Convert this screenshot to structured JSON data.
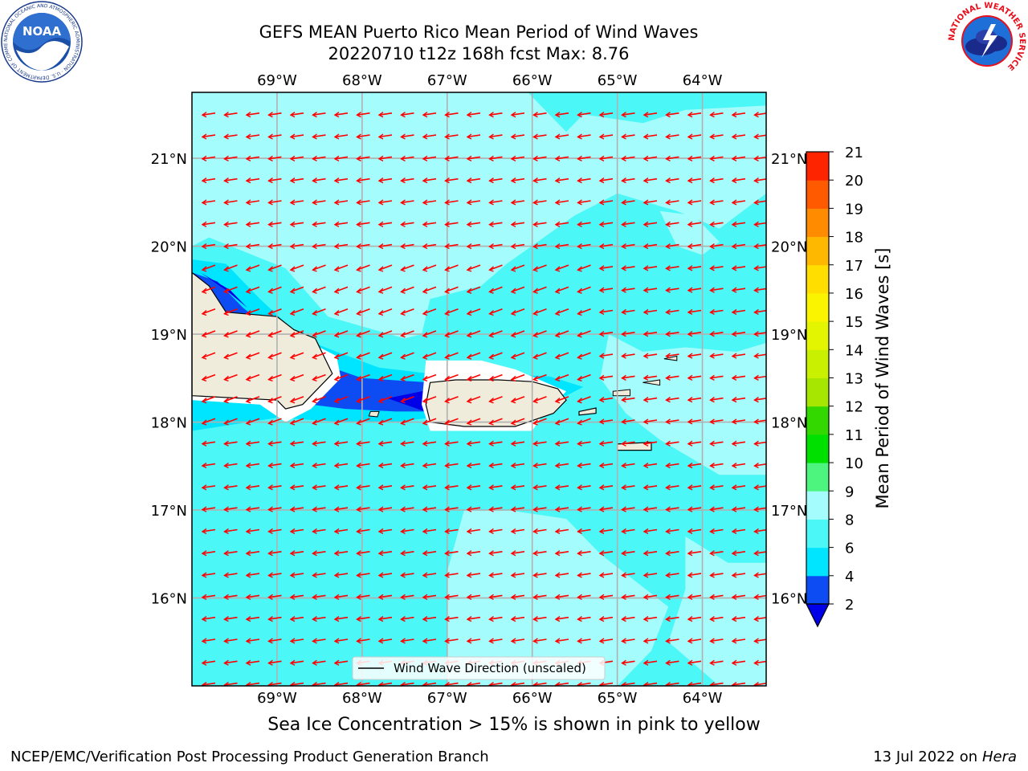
{
  "title": {
    "line1": "GEFS MEAN Puerto Rico Mean Period of Wind Waves",
    "line2": "20220710 t12z 168h fcst   Max: 8.76"
  },
  "map": {
    "lon_range": [
      -70.0,
      -63.25
    ],
    "lat_range": [
      15.0,
      21.75
    ],
    "lon_ticks": [
      "69°W",
      "68°W",
      "67°W",
      "66°W",
      "65°W",
      "64°W"
    ],
    "lat_ticks": [
      "21°N",
      "20°N",
      "19°N",
      "18°N",
      "17°N",
      "16°N"
    ],
    "legend_label": "Wind Wave Direction (unscaled)",
    "arrow_color": "#ff0000",
    "land_color": "#efecdc"
  },
  "colorbar": {
    "label": "Mean Period of Wind Waves [s]",
    "ticks": [
      "2",
      "4",
      "6",
      "8",
      "9",
      "10",
      "11",
      "12",
      "13",
      "14",
      "15",
      "16",
      "17",
      "18",
      "19",
      "20",
      "21"
    ],
    "colors": [
      "#0c4cf2",
      "#00e5ff",
      "#4cf7f7",
      "#a5fcfc",
      "#4df57f",
      "#00e000",
      "#33d800",
      "#a7e600",
      "#c9f000",
      "#e3f500",
      "#fbf400",
      "#ffde00",
      "#ffb800",
      "#ff8c00",
      "#ff5a00",
      "#ff2400"
    ],
    "under_color": "#0000e8"
  },
  "caption": "Sea Ice Concentration > 15% is shown in pink to yellow",
  "footer": {
    "left": "NCEP/EMC/Verification Post Processing Product Generation Branch",
    "right_prefix": "13 Jul 2022 on ",
    "right_host": "Hera"
  },
  "logos": {
    "noaa_text": "NOAA",
    "noaa_ring": "NATIONAL OCEANIC AND ATMOSPHERIC ADMINISTRATION · U.S. DEPARTMENT OF COMMERCE",
    "nws_ring": "NATIONAL WEATHER SERVICE"
  }
}
